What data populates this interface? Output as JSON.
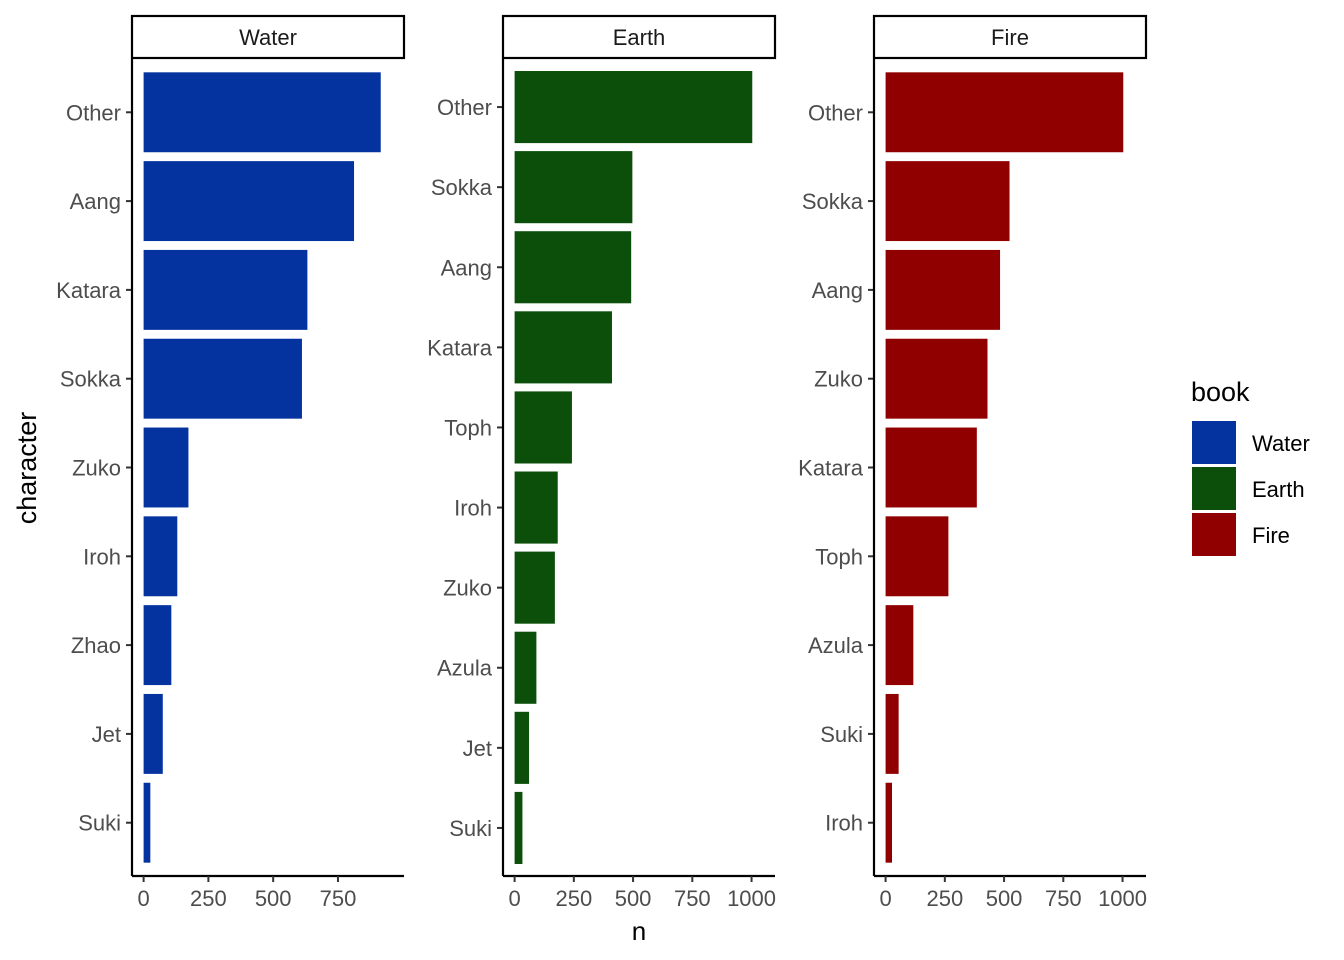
{
  "chart_data": {
    "type": "bar",
    "orientation": "horizontal",
    "ylabel": "character",
    "xlabel": "n",
    "legend": {
      "title": "book",
      "position": "right",
      "entries": [
        {
          "label": "Water",
          "color": "#0433A0"
        },
        {
          "label": "Earth",
          "color": "#0C4F0A"
        },
        {
          "label": "Fire",
          "color": "#900000"
        }
      ]
    },
    "panels": [
      {
        "title": "Water",
        "color": "#0433A0",
        "xlim": [
          0,
          960
        ],
        "xticks": [
          0,
          250,
          500,
          750
        ],
        "categories": [
          "Other",
          "Aang",
          "Katara",
          "Sokka",
          "Zuko",
          "Iroh",
          "Zhao",
          "Jet",
          "Suki"
        ],
        "values": [
          915,
          812,
          632,
          611,
          173,
          130,
          107,
          74,
          26
        ]
      },
      {
        "title": "Earth",
        "color": "#0C4F0A",
        "xlim": [
          0,
          1050
        ],
        "xticks": [
          0,
          250,
          500,
          750,
          1000
        ],
        "categories": [
          "Other",
          "Sokka",
          "Aang",
          "Katara",
          "Toph",
          "Iroh",
          "Zuko",
          "Azula",
          "Jet",
          "Suki"
        ],
        "values": [
          1003,
          497,
          492,
          411,
          242,
          182,
          170,
          92,
          61,
          33
        ]
      },
      {
        "title": "Fire",
        "color": "#900000",
        "xlim": [
          0,
          1050
        ],
        "xticks": [
          0,
          250,
          500,
          750,
          1000
        ],
        "categories": [
          "Other",
          "Sokka",
          "Aang",
          "Zuko",
          "Katara",
          "Toph",
          "Azula",
          "Suki",
          "Iroh"
        ],
        "values": [
          1003,
          523,
          483,
          430,
          385,
          265,
          117,
          55,
          27
        ]
      }
    ]
  }
}
